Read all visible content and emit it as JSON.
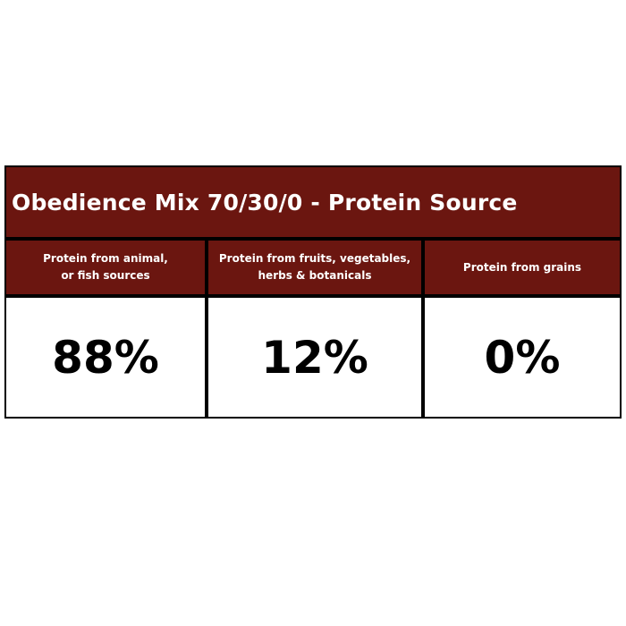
{
  "title": "Obedience Mix 70/30/0 - Protein Source",
  "colors": {
    "header_bg": "#6b1610",
    "header_text": "#ffffff",
    "border": "#000000"
  },
  "columns": [
    {
      "label_line1": "Protein from animal,",
      "label_line2": "or fish sources",
      "value": "88%"
    },
    {
      "label_line1": "Protein from fruits,  vegetables,",
      "label_line2": "herbs & botanicals",
      "value": "12%"
    },
    {
      "label_line1": "Protein from grains",
      "label_line2": "",
      "value": "0%"
    }
  ]
}
